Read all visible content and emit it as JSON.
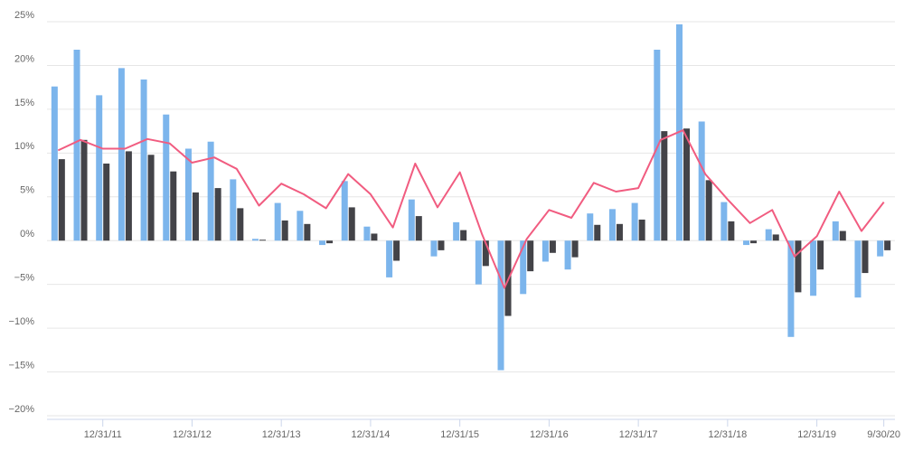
{
  "chart_data": {
    "type": "bar",
    "categories": [
      null,
      null,
      "12/31/11",
      null,
      null,
      null,
      "12/31/12",
      null,
      null,
      null,
      "12/31/13",
      null,
      null,
      null,
      "12/31/14",
      null,
      null,
      null,
      "12/31/15",
      null,
      null,
      null,
      "12/31/16",
      null,
      null,
      null,
      "12/31/17",
      null,
      null,
      null,
      "12/31/18",
      null,
      null,
      null,
      "12/31/19",
      null,
      null,
      "9/30/20"
    ],
    "series": [
      {
        "type": "bar",
        "color": "#7cb5ec",
        "values": [
          17.6,
          21.8,
          16.6,
          19.7,
          18.4,
          14.4,
          10.5,
          11.3,
          7.0,
          0.2,
          4.3,
          3.4,
          -0.5,
          6.8,
          1.6,
          -4.2,
          4.7,
          -1.8,
          2.1,
          -5.0,
          -14.8,
          -6.1,
          -2.4,
          -3.3,
          3.1,
          3.6,
          4.3,
          21.8,
          24.7,
          13.6,
          4.4,
          -0.5,
          1.3,
          -11.0,
          -6.3,
          2.2,
          -6.5,
          -1.8
        ]
      },
      {
        "type": "bar",
        "color": "#434348",
        "values": [
          9.3,
          11.5,
          8.8,
          10.2,
          9.8,
          7.9,
          5.5,
          6.0,
          3.7,
          0.1,
          2.3,
          1.9,
          -0.3,
          3.8,
          0.8,
          -2.3,
          2.8,
          -1.1,
          1.2,
          -2.9,
          -8.6,
          -3.5,
          -1.4,
          -1.9,
          1.8,
          1.9,
          2.4,
          12.5,
          12.8,
          6.9,
          2.2,
          -0.3,
          0.7,
          -5.9,
          -3.3,
          1.1,
          -3.7,
          -1.1
        ]
      },
      {
        "type": "line",
        "color": "#f15c80",
        "values": [
          10.3,
          11.5,
          10.5,
          10.5,
          11.6,
          11.1,
          8.9,
          9.5,
          8.2,
          4.0,
          6.5,
          5.3,
          3.7,
          7.6,
          5.3,
          1.5,
          8.8,
          3.8,
          7.8,
          0.7,
          -5.4,
          0.2,
          3.5,
          2.6,
          6.6,
          5.6,
          6.0,
          11.5,
          12.6,
          7.6,
          4.7,
          2.0,
          3.5,
          -1.8,
          0.5,
          5.6,
          1.1,
          4.4
        ]
      }
    ],
    "ylim": [
      -20,
      25
    ],
    "yticks": [
      {
        "value": -20,
        "label": "−20%"
      },
      {
        "value": -15,
        "label": "−15%"
      },
      {
        "value": -10,
        "label": "−10%"
      },
      {
        "value": -5,
        "label": "−5%"
      },
      {
        "value": 0,
        "label": "0%"
      },
      {
        "value": 5,
        "label": "5%"
      },
      {
        "value": 10,
        "label": "10%"
      },
      {
        "value": 15,
        "label": "15%"
      },
      {
        "value": 20,
        "label": "20%"
      },
      {
        "value": 25,
        "label": "25%"
      }
    ],
    "grid": true
  }
}
